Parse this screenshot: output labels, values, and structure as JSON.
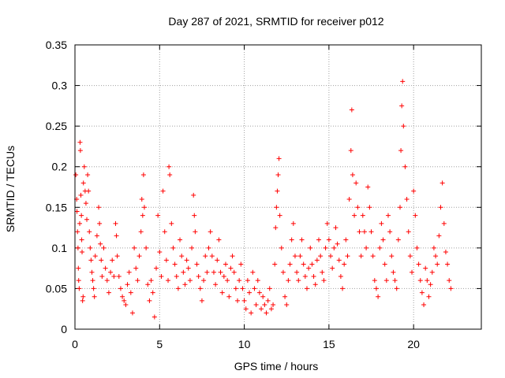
{
  "chart_data": {
    "type": "scatter",
    "title": "Day 287 of 2021, SRMTID for receiver p012",
    "xlabel": "GPS time / hours",
    "ylabel": "SRMTID / TECUs",
    "xlim": [
      0,
      24
    ],
    "ylim": [
      0,
      0.35
    ],
    "x_ticks": [
      0,
      5,
      10,
      15,
      20
    ],
    "x_tick_labels": [
      "0",
      "5",
      "10",
      "15",
      "20"
    ],
    "y_ticks": [
      0,
      0.05,
      0.1,
      0.15,
      0.2,
      0.25,
      0.3,
      0.35
    ],
    "y_tick_labels": [
      "0",
      "0.05",
      "0.1",
      "0.15",
      "0.2",
      "0.25",
      "0.3",
      "0.35"
    ],
    "grid": true,
    "marker": "+",
    "color": "#ff0000",
    "series": [
      {
        "name": "SRMTID",
        "points": [
          [
            0.05,
            0.19
          ],
          [
            0.1,
            0.16
          ],
          [
            0.12,
            0.145
          ],
          [
            0.15,
            0.12
          ],
          [
            0.18,
            0.1
          ],
          [
            0.2,
            0.075
          ],
          [
            0.22,
            0.06
          ],
          [
            0.25,
            0.05
          ],
          [
            0.28,
            0.13
          ],
          [
            0.3,
            0.23
          ],
          [
            0.32,
            0.22
          ],
          [
            0.35,
            0.165
          ],
          [
            0.38,
            0.14
          ],
          [
            0.4,
            0.11
          ],
          [
            0.42,
            0.095
          ],
          [
            0.45,
            0.035
          ],
          [
            0.48,
            0.04
          ],
          [
            0.5,
            0.18
          ],
          [
            0.55,
            0.2
          ],
          [
            0.6,
            0.17
          ],
          [
            0.65,
            0.155
          ],
          [
            0.7,
            0.135
          ],
          [
            0.75,
            0.19
          ],
          [
            0.8,
            0.17
          ],
          [
            0.85,
            0.12
          ],
          [
            0.9,
            0.1
          ],
          [
            0.95,
            0.085
          ],
          [
            1.0,
            0.07
          ],
          [
            1.05,
            0.06
          ],
          [
            1.1,
            0.05
          ],
          [
            1.15,
            0.04
          ],
          [
            1.2,
            0.09
          ],
          [
            1.3,
            0.115
          ],
          [
            1.4,
            0.15
          ],
          [
            1.45,
            0.13
          ],
          [
            1.5,
            0.105
          ],
          [
            1.55,
            0.085
          ],
          [
            1.6,
            0.065
          ],
          [
            1.7,
            0.1
          ],
          [
            1.8,
            0.075
          ],
          [
            1.9,
            0.06
          ],
          [
            2.0,
            0.045
          ],
          [
            2.1,
            0.07
          ],
          [
            2.2,
            0.085
          ],
          [
            2.3,
            0.065
          ],
          [
            2.4,
            0.13
          ],
          [
            2.45,
            0.115
          ],
          [
            2.5,
            0.09
          ],
          [
            2.6,
            0.065
          ],
          [
            2.7,
            0.05
          ],
          [
            2.8,
            0.04
          ],
          [
            2.9,
            0.035
          ],
          [
            3.0,
            0.03
          ],
          [
            3.1,
            0.055
          ],
          [
            3.2,
            0.07
          ],
          [
            3.3,
            0.045
          ],
          [
            3.4,
            0.02
          ],
          [
            3.5,
            0.1
          ],
          [
            3.6,
            0.075
          ],
          [
            3.7,
            0.06
          ],
          [
            3.8,
            0.09
          ],
          [
            3.9,
            0.12
          ],
          [
            3.95,
            0.16
          ],
          [
            4.0,
            0.14
          ],
          [
            4.05,
            0.19
          ],
          [
            4.1,
            0.15
          ],
          [
            4.2,
            0.1
          ],
          [
            4.3,
            0.055
          ],
          [
            4.4,
            0.035
          ],
          [
            4.5,
            0.06
          ],
          [
            4.6,
            0.045
          ],
          [
            4.7,
            0.015
          ],
          [
            4.8,
            0.075
          ],
          [
            4.9,
            0.14
          ],
          [
            5.0,
            0.095
          ],
          [
            5.1,
            0.065
          ],
          [
            5.2,
            0.17
          ],
          [
            5.3,
            0.12
          ],
          [
            5.4,
            0.085
          ],
          [
            5.5,
            0.06
          ],
          [
            5.55,
            0.2
          ],
          [
            5.6,
            0.19
          ],
          [
            5.7,
            0.13
          ],
          [
            5.8,
            0.1
          ],
          [
            5.9,
            0.08
          ],
          [
            6.0,
            0.065
          ],
          [
            6.1,
            0.05
          ],
          [
            6.2,
            0.11
          ],
          [
            6.3,
            0.09
          ],
          [
            6.4,
            0.07
          ],
          [
            6.5,
            0.055
          ],
          [
            6.6,
            0.085
          ],
          [
            6.7,
            0.075
          ],
          [
            6.8,
            0.06
          ],
          [
            6.9,
            0.1
          ],
          [
            7.0,
            0.165
          ],
          [
            7.05,
            0.14
          ],
          [
            7.1,
            0.12
          ],
          [
            7.2,
            0.08
          ],
          [
            7.3,
            0.065
          ],
          [
            7.4,
            0.05
          ],
          [
            7.5,
            0.035
          ],
          [
            7.6,
            0.06
          ],
          [
            7.7,
            0.09
          ],
          [
            7.8,
            0.07
          ],
          [
            7.9,
            0.1
          ],
          [
            8.0,
            0.12
          ],
          [
            8.1,
            0.09
          ],
          [
            8.2,
            0.07
          ],
          [
            8.3,
            0.055
          ],
          [
            8.4,
            0.085
          ],
          [
            8.5,
            0.11
          ],
          [
            8.6,
            0.07
          ],
          [
            8.7,
            0.045
          ],
          [
            8.8,
            0.065
          ],
          [
            8.9,
            0.08
          ],
          [
            9.0,
            0.06
          ],
          [
            9.1,
            0.04
          ],
          [
            9.2,
            0.075
          ],
          [
            9.3,
            0.09
          ],
          [
            9.4,
            0.07
          ],
          [
            9.5,
            0.05
          ],
          [
            9.6,
            0.035
          ],
          [
            9.7,
            0.06
          ],
          [
            9.8,
            0.08
          ],
          [
            9.9,
            0.05
          ],
          [
            10.0,
            0.035
          ],
          [
            10.1,
            0.025
          ],
          [
            10.2,
            0.06
          ],
          [
            10.3,
            0.045
          ],
          [
            10.4,
            0.02
          ],
          [
            10.5,
            0.07
          ],
          [
            10.6,
            0.05
          ],
          [
            10.7,
            0.03
          ],
          [
            10.8,
            0.06
          ],
          [
            10.9,
            0.045
          ],
          [
            11.0,
            0.025
          ],
          [
            11.1,
            0.04
          ],
          [
            11.2,
            0.03
          ],
          [
            11.3,
            0.02
          ],
          [
            11.4,
            0.035
          ],
          [
            11.5,
            0.05
          ],
          [
            11.6,
            0.025
          ],
          [
            11.7,
            0.03
          ],
          [
            11.8,
            0.08
          ],
          [
            11.85,
            0.125
          ],
          [
            11.9,
            0.15
          ],
          [
            11.95,
            0.17
          ],
          [
            12.0,
            0.19
          ],
          [
            12.05,
            0.21
          ],
          [
            12.1,
            0.14
          ],
          [
            12.2,
            0.1
          ],
          [
            12.3,
            0.07
          ],
          [
            12.4,
            0.04
          ],
          [
            12.5,
            0.03
          ],
          [
            12.6,
            0.06
          ],
          [
            12.7,
            0.08
          ],
          [
            12.8,
            0.11
          ],
          [
            12.9,
            0.13
          ],
          [
            13.0,
            0.09
          ],
          [
            13.1,
            0.07
          ],
          [
            13.2,
            0.06
          ],
          [
            13.3,
            0.09
          ],
          [
            13.4,
            0.11
          ],
          [
            13.5,
            0.08
          ],
          [
            13.6,
            0.065
          ],
          [
            13.7,
            0.05
          ],
          [
            13.8,
            0.075
          ],
          [
            13.9,
            0.1
          ],
          [
            14.0,
            0.08
          ],
          [
            14.1,
            0.065
          ],
          [
            14.2,
            0.055
          ],
          [
            14.3,
            0.085
          ],
          [
            14.4,
            0.11
          ],
          [
            14.5,
            0.09
          ],
          [
            14.6,
            0.07
          ],
          [
            14.7,
            0.06
          ],
          [
            14.8,
            0.1
          ],
          [
            14.9,
            0.13
          ],
          [
            15.0,
            0.11
          ],
          [
            15.1,
            0.09
          ],
          [
            15.2,
            0.075
          ],
          [
            15.3,
            0.1
          ],
          [
            15.4,
            0.125
          ],
          [
            15.5,
            0.105
          ],
          [
            15.6,
            0.085
          ],
          [
            15.7,
            0.065
          ],
          [
            15.8,
            0.05
          ],
          [
            15.9,
            0.08
          ],
          [
            16.0,
            0.11
          ],
          [
            16.1,
            0.09
          ],
          [
            16.2,
            0.16
          ],
          [
            16.3,
            0.22
          ],
          [
            16.35,
            0.27
          ],
          [
            16.4,
            0.19
          ],
          [
            16.5,
            0.14
          ],
          [
            16.6,
            0.18
          ],
          [
            16.7,
            0.15
          ],
          [
            16.8,
            0.12
          ],
          [
            16.9,
            0.09
          ],
          [
            17.0,
            0.14
          ],
          [
            17.1,
            0.12
          ],
          [
            17.2,
            0.1
          ],
          [
            17.3,
            0.175
          ],
          [
            17.4,
            0.15
          ],
          [
            17.5,
            0.12
          ],
          [
            17.6,
            0.09
          ],
          [
            17.7,
            0.06
          ],
          [
            17.8,
            0.05
          ],
          [
            17.9,
            0.04
          ],
          [
            18.0,
            0.1
          ],
          [
            18.1,
            0.13
          ],
          [
            18.2,
            0.11
          ],
          [
            18.3,
            0.08
          ],
          [
            18.4,
            0.06
          ],
          [
            18.5,
            0.14
          ],
          [
            18.6,
            0.12
          ],
          [
            18.7,
            0.09
          ],
          [
            18.8,
            0.07
          ],
          [
            18.9,
            0.06
          ],
          [
            19.0,
            0.05
          ],
          [
            19.1,
            0.11
          ],
          [
            19.2,
            0.15
          ],
          [
            19.25,
            0.22
          ],
          [
            19.3,
            0.275
          ],
          [
            19.35,
            0.305
          ],
          [
            19.4,
            0.25
          ],
          [
            19.5,
            0.2
          ],
          [
            19.6,
            0.16
          ],
          [
            19.7,
            0.12
          ],
          [
            19.8,
            0.09
          ],
          [
            19.9,
            0.07
          ],
          [
            20.0,
            0.17
          ],
          [
            20.1,
            0.14
          ],
          [
            20.2,
            0.1
          ],
          [
            20.3,
            0.08
          ],
          [
            20.4,
            0.06
          ],
          [
            20.5,
            0.045
          ],
          [
            20.6,
            0.03
          ],
          [
            20.7,
            0.075
          ],
          [
            20.8,
            0.06
          ],
          [
            20.9,
            0.04
          ],
          [
            21.0,
            0.055
          ],
          [
            21.1,
            0.07
          ],
          [
            21.2,
            0.1
          ],
          [
            21.3,
            0.09
          ],
          [
            21.4,
            0.08
          ],
          [
            21.5,
            0.115
          ],
          [
            21.6,
            0.15
          ],
          [
            21.7,
            0.18
          ],
          [
            21.8,
            0.13
          ],
          [
            21.9,
            0.095
          ],
          [
            22.0,
            0.08
          ],
          [
            22.1,
            0.06
          ],
          [
            22.2,
            0.05
          ]
        ]
      }
    ]
  }
}
